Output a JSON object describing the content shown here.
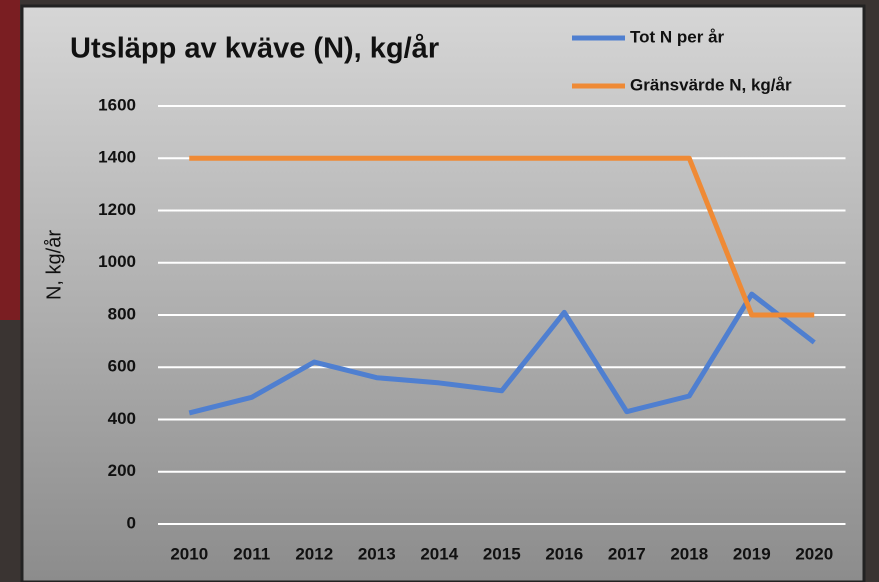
{
  "chart_data": {
    "type": "line",
    "title": "Utsläpp av kväve (N), kg/år",
    "y_label": "N, kg/år",
    "categories": [
      "2010",
      "2011",
      "2012",
      "2013",
      "2014",
      "2015",
      "2016",
      "2017",
      "2018",
      "2019",
      "2020"
    ],
    "series": [
      {
        "name": "Tot N per år",
        "color": "#4f7fd0",
        "values": [
          425,
          485,
          620,
          560,
          540,
          510,
          810,
          430,
          490,
          880,
          695
        ]
      },
      {
        "name": "Gränsvärde N, kg/år",
        "color": "#ef8a35",
        "values": [
          1400,
          1400,
          1400,
          1400,
          1400,
          1400,
          1400,
          1400,
          1400,
          800,
          800
        ]
      }
    ],
    "ylim": [
      0,
      1600
    ],
    "yticks": [
      0,
      200,
      400,
      600,
      800,
      1000,
      1200,
      1400,
      1600
    ],
    "grid": true
  }
}
